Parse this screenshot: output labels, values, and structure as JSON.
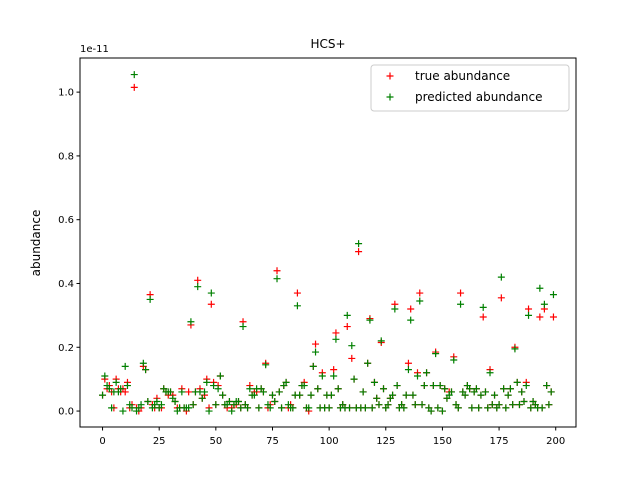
{
  "chart_data": {
    "type": "scatter",
    "title": "HCS+",
    "ylabel": "abundance",
    "y_offset_text": "1e-11",
    "xlim": [
      -9.95,
      208.95
    ],
    "ylim": [
      -0.05,
      1.107
    ],
    "xticks": [
      0,
      25,
      50,
      75,
      100,
      125,
      150,
      175,
      200
    ],
    "yticks": [
      {
        "value": 0,
        "label": "0.0"
      },
      {
        "value": 0.2,
        "label": "0.2"
      },
      {
        "value": 0.4,
        "label": "0.4"
      },
      {
        "value": 0.6,
        "label": "0.6"
      },
      {
        "value": 0.8,
        "label": "0.8"
      },
      {
        "value": 1.0,
        "label": "1.0"
      }
    ],
    "legend": "upper right",
    "marker": "+",
    "x": [
      0,
      1,
      2,
      3,
      4,
      5,
      6,
      7,
      8,
      9,
      10,
      11,
      12,
      13,
      14,
      15,
      16,
      17,
      18,
      19,
      20,
      21,
      22,
      23,
      24,
      25,
      26,
      27,
      28,
      29,
      30,
      31,
      32,
      33,
      34,
      35,
      36,
      37,
      38,
      39,
      40,
      41,
      42,
      43,
      44,
      45,
      46,
      47,
      48,
      49,
      50,
      51,
      52,
      53,
      54,
      55,
      56,
      57,
      58,
      59,
      60,
      61,
      62,
      63,
      64,
      65,
      66,
      67,
      68,
      69,
      70,
      71,
      72,
      73,
      74,
      75,
      76,
      77,
      78,
      79,
      80,
      81,
      82,
      83,
      84,
      85,
      86,
      87,
      88,
      89,
      90,
      91,
      92,
      93,
      94,
      95,
      96,
      97,
      98,
      99,
      100,
      101,
      102,
      103,
      104,
      105,
      106,
      107,
      108,
      109,
      110,
      111,
      112,
      113,
      114,
      115,
      116,
      117,
      118,
      119,
      120,
      121,
      122,
      123,
      124,
      125,
      126,
      127,
      128,
      129,
      130,
      131,
      132,
      133,
      134,
      135,
      136,
      137,
      138,
      139,
      140,
      141,
      142,
      143,
      144,
      145,
      146,
      147,
      148,
      149,
      150,
      151,
      152,
      153,
      154,
      155,
      156,
      157,
      158,
      159,
      160,
      161,
      162,
      163,
      164,
      165,
      166,
      167,
      168,
      169,
      170,
      171,
      172,
      173,
      174,
      175,
      176,
      177,
      178,
      179,
      180,
      181,
      182,
      183,
      184,
      185,
      186,
      187,
      188,
      189,
      190,
      191,
      192,
      193,
      194,
      195,
      196,
      197,
      198,
      199
    ],
    "series": [
      {
        "name": "true abundance",
        "color": "#ff0000",
        "values": [
          0.05,
          0.1,
          0.07,
          0.08,
          0.06,
          0.01,
          0.1,
          0.07,
          0.06,
          0.07,
          0.06,
          0.09,
          0.01,
          0.02,
          1.015,
          0.01,
          0.0,
          0.01,
          0.14,
          0.13,
          0.03,
          0.365,
          0.02,
          0.01,
          0.04,
          0.01,
          0.01,
          0.07,
          0.06,
          0.05,
          0.06,
          0.05,
          0.03,
          0.01,
          0.01,
          0.07,
          0.01,
          0.0,
          0.06,
          0.27,
          0.02,
          0.06,
          0.41,
          0.07,
          0.04,
          0.05,
          0.1,
          0.01,
          0.335,
          0.09,
          0.02,
          0.08,
          0.11,
          0.05,
          0.02,
          0.01,
          0.03,
          0.01,
          0.02,
          0.02,
          0.03,
          0.01,
          0.28,
          0.02,
          0.01,
          0.08,
          0.05,
          0.06,
          0.06,
          0.01,
          0.07,
          0.06,
          0.15,
          0.01,
          0.02,
          0.05,
          0.03,
          0.44,
          0.06,
          0.01,
          0.08,
          0.09,
          0.01,
          0.02,
          0.01,
          0.05,
          0.37,
          0.05,
          0.08,
          0.09,
          0.01,
          0.0,
          0.05,
          0.14,
          0.21,
          0.07,
          0.01,
          0.12,
          0.01,
          0.05,
          0.01,
          0.05,
          0.13,
          0.245,
          0.07,
          0.01,
          0.02,
          0.01,
          0.265,
          0.01,
          0.165,
          0.1,
          0.01,
          0.5,
          0.01,
          0.06,
          0.01,
          0.15,
          0.29,
          0.01,
          0.09,
          0.04,
          0.02,
          0.215,
          0.07,
          0.01,
          0.02,
          0.04,
          0.05,
          0.335,
          0.08,
          0.01,
          0.02,
          0.01,
          0.05,
          0.15,
          0.32,
          0.05,
          0.02,
          0.12,
          0.37,
          0.02,
          0.08,
          0.12,
          0.01,
          0.0,
          0.08,
          0.185,
          0.01,
          0.08,
          0.0,
          0.07,
          0.04,
          0.06,
          0.06,
          0.17,
          0.02,
          0.01,
          0.37,
          0.06,
          0.05,
          0.08,
          0.07,
          0.01,
          0.06,
          0.07,
          0.01,
          0.05,
          0.295,
          0.06,
          0.01,
          0.13,
          0.02,
          0.05,
          0.01,
          0.02,
          0.355,
          0.07,
          0.01,
          0.05,
          0.07,
          0.02,
          0.2,
          0.09,
          0.02,
          0.06,
          0.03,
          0.09,
          0.32,
          0.01,
          0.03,
          0.02,
          0.01,
          0.295,
          0.01,
          0.32,
          0.08,
          0.02,
          0.06,
          0.295
        ]
      },
      {
        "name": "predicted abundance",
        "color": "#008000",
        "values": [
          0.05,
          0.11,
          0.08,
          0.07,
          0.01,
          0.06,
          0.09,
          0.06,
          0.07,
          0.0,
          0.14,
          0.08,
          0.02,
          0.01,
          1.055,
          0.0,
          0.01,
          0.02,
          0.15,
          0.13,
          0.03,
          0.35,
          0.01,
          0.02,
          0.03,
          0.01,
          0.02,
          0.07,
          0.06,
          0.06,
          0.06,
          0.04,
          0.03,
          0.0,
          0.01,
          0.06,
          0.01,
          0.01,
          0.01,
          0.28,
          0.02,
          0.06,
          0.39,
          0.06,
          0.04,
          0.06,
          0.09,
          0.0,
          0.37,
          0.08,
          0.02,
          0.07,
          0.11,
          0.05,
          0.02,
          0.02,
          0.03,
          0.0,
          0.02,
          0.03,
          0.03,
          0.01,
          0.265,
          0.02,
          0.01,
          0.07,
          0.05,
          0.05,
          0.07,
          0.01,
          0.07,
          0.06,
          0.145,
          0.02,
          0.01,
          0.05,
          0.03,
          0.415,
          0.06,
          0.01,
          0.08,
          0.09,
          0.02,
          0.01,
          0.01,
          0.05,
          0.33,
          0.05,
          0.08,
          0.08,
          0.01,
          0.01,
          0.05,
          0.14,
          0.185,
          0.07,
          0.01,
          0.11,
          0.01,
          0.05,
          0.01,
          0.05,
          0.11,
          0.225,
          0.07,
          0.01,
          0.02,
          0.01,
          0.3,
          0.01,
          0.205,
          0.1,
          0.01,
          0.525,
          0.01,
          0.06,
          0.01,
          0.15,
          0.285,
          0.01,
          0.09,
          0.04,
          0.02,
          0.22,
          0.07,
          0.01,
          0.02,
          0.04,
          0.05,
          0.32,
          0.08,
          0.01,
          0.02,
          0.01,
          0.05,
          0.13,
          0.285,
          0.05,
          0.02,
          0.11,
          0.345,
          0.02,
          0.08,
          0.12,
          0.01,
          0.0,
          0.08,
          0.18,
          0.01,
          0.08,
          0.0,
          0.07,
          0.04,
          0.05,
          0.06,
          0.16,
          0.02,
          0.01,
          0.335,
          0.06,
          0.05,
          0.08,
          0.07,
          0.01,
          0.06,
          0.07,
          0.01,
          0.05,
          0.325,
          0.06,
          0.01,
          0.12,
          0.02,
          0.05,
          0.01,
          0.02,
          0.42,
          0.07,
          0.01,
          0.05,
          0.07,
          0.02,
          0.195,
          0.09,
          0.02,
          0.06,
          0.03,
          0.08,
          0.3,
          0.01,
          0.03,
          0.02,
          0.01,
          0.385,
          0.01,
          0.335,
          0.08,
          0.02,
          0.06,
          0.365
        ]
      }
    ]
  }
}
